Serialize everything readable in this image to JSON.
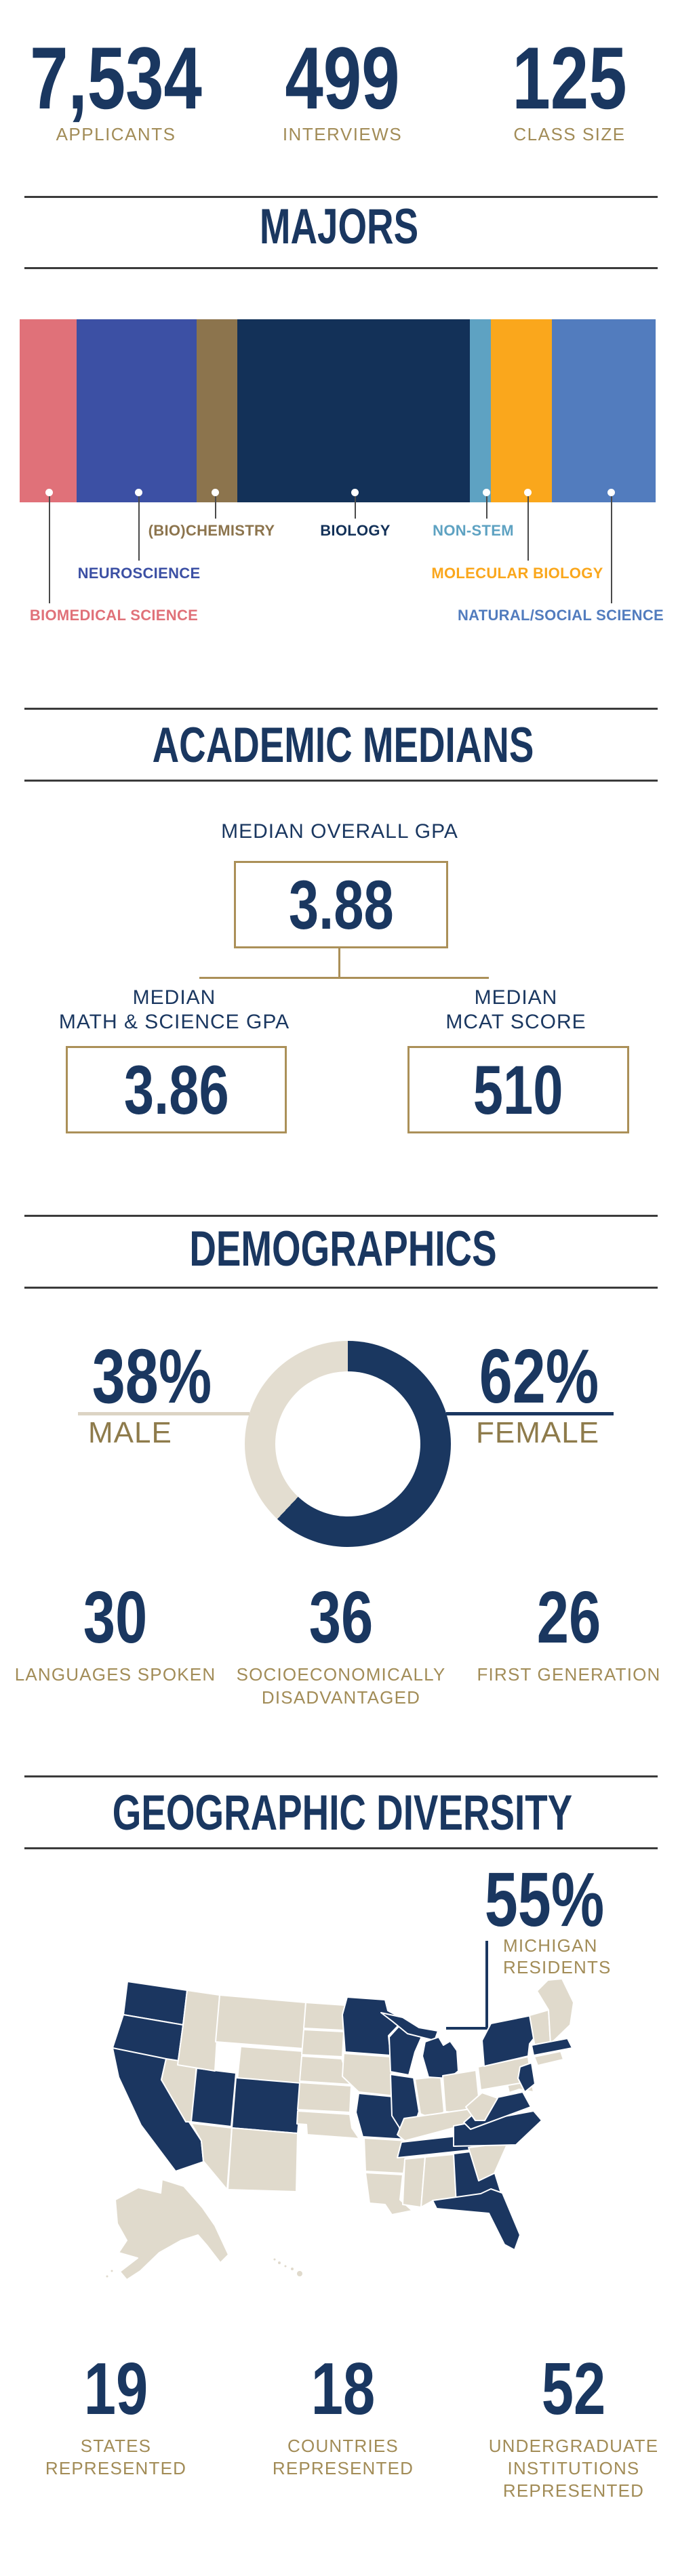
{
  "colors": {
    "navy": "#1A3760",
    "gold": "#A28C57",
    "male_female_gold": "#8E7B4B",
    "rule_gray": "#3B3B3B",
    "box_border_tan": "#AB9058",
    "beige": "#E3DDD0",
    "underline_beige": "#DCD4C4",
    "map_beige": "#E0DACC",
    "map_navy": "#1B3660",
    "white": "#FFFFFF"
  },
  "top_stats": [
    {
      "value": "7,534",
      "label": "APPLICANTS"
    },
    {
      "value": "499",
      "label": "INTERVIEWS"
    },
    {
      "value": "125",
      "label": "CLASS SIZE"
    }
  ],
  "majors": {
    "title": "MAJORS",
    "segments": [
      {
        "label": "BIOMEDICAL SCIENCE",
        "percent": 9.0,
        "color": "#E07179"
      },
      {
        "label": "NEUROSCIENCE",
        "percent": 18.8,
        "color": "#3C50A4"
      },
      {
        "label": "(BIO)CHEMISTRY",
        "percent": 6.4,
        "color": "#8C744D"
      },
      {
        "label": "BIOLOGY",
        "percent": 36.6,
        "color": "#133158"
      },
      {
        "label": "NON-STEM",
        "percent": 3.3,
        "color": "#5EA2C2"
      },
      {
        "label": "MOLECULAR BIOLOGY",
        "percent": 9.6,
        "color": "#FAA71C"
      },
      {
        "label": "NATURAL/SOCIAL SCIENCE",
        "percent": 16.3,
        "color": "#527CBE"
      }
    ]
  },
  "academic": {
    "title": "ACADEMIC MEDIANS",
    "overall_label": "MEDIAN OVERALL GPA",
    "overall_value": "3.88",
    "math_label_1": "MEDIAN",
    "math_label_2": "MATH & SCIENCE GPA",
    "math_value": "3.86",
    "mcat_label_1": "MEDIAN",
    "mcat_label_2": "MCAT SCORE",
    "mcat_value": "510"
  },
  "demographics": {
    "title": "DEMOGRAPHICS",
    "male_pct": "38%",
    "male_label": "MALE",
    "female_pct": "62%",
    "female_label": "FEMALE",
    "donut": {
      "female_percent": 62,
      "male_percent": 38
    },
    "stats": [
      {
        "value": "30",
        "lines": [
          "LANGUAGES SPOKEN"
        ]
      },
      {
        "value": "36",
        "lines": [
          "SOCIOECONOMICALLY",
          "DISADVANTAGED"
        ]
      },
      {
        "value": "26",
        "lines": [
          "FIRST GENERATION"
        ]
      }
    ]
  },
  "geographic": {
    "title": "GEOGRAPHIC DIVERSITY",
    "michigan_pct": "55%",
    "michigan_label_1": "MICHIGAN",
    "michigan_label_2": "RESIDENTS",
    "map": {
      "represented_states": [
        "WA",
        "OR",
        "CA",
        "UT",
        "CO",
        "MN",
        "WI",
        "MI",
        "IL",
        "MO",
        "TX",
        "TN",
        "NC",
        "VA",
        "GA",
        "FL",
        "NY",
        "MA",
        "NJ"
      ],
      "not_represented_examples": [
        "ID",
        "MT",
        "WY",
        "NV",
        "AZ",
        "NM",
        "ND",
        "SD",
        "NE",
        "KS",
        "OK",
        "IA",
        "AR",
        "LA",
        "MS",
        "AL",
        "SC",
        "KY",
        "IN",
        "OH",
        "WV",
        "PA",
        "MD",
        "VT",
        "NH",
        "ME",
        "CT",
        "RI",
        "AK",
        "HI"
      ]
    },
    "stats": [
      {
        "value": "19",
        "lines": [
          "STATES",
          "REPRESENTED"
        ]
      },
      {
        "value": "18",
        "lines": [
          "COUNTRIES",
          "REPRESENTED"
        ]
      },
      {
        "value": "52",
        "lines": [
          "UNDERGRADUATE",
          "INSTITUTIONS",
          "REPRESENTED"
        ]
      }
    ]
  },
  "chart_data": [
    {
      "type": "bar",
      "subtype": "stacked-horizontal-100pct",
      "title": "MAJORS",
      "categories": [
        "BIOMEDICAL SCIENCE",
        "NEUROSCIENCE",
        "(BIO)CHEMISTRY",
        "BIOLOGY",
        "NON-STEM",
        "MOLECULAR BIOLOGY",
        "NATURAL/SOCIAL SCIENCE"
      ],
      "values": [
        9.0,
        18.8,
        6.4,
        36.6,
        3.3,
        9.6,
        16.3
      ],
      "unit": "percent of class (estimated from segment widths)",
      "colors": [
        "#E07179",
        "#3C50A4",
        "#8C744D",
        "#133158",
        "#5EA2C2",
        "#FAA71C",
        "#527CBE"
      ],
      "legend_position": "callouts-below"
    },
    {
      "type": "pie",
      "subtype": "donut",
      "title": "DEMOGRAPHICS - GENDER",
      "categories": [
        "FEMALE",
        "MALE"
      ],
      "values": [
        62,
        38
      ],
      "colors": [
        "#1A3760",
        "#E3DDD0"
      ],
      "start_angle_deg": 0,
      "direction": "clockwise"
    },
    {
      "type": "heatmap",
      "subtype": "us-choropleth",
      "title": "GEOGRAPHIC DIVERSITY",
      "categories": [
        "represented",
        "not represented"
      ],
      "represented_states": [
        "WA",
        "OR",
        "CA",
        "UT",
        "CO",
        "MN",
        "WI",
        "MI",
        "IL",
        "MO",
        "TX",
        "TN",
        "NC",
        "VA",
        "GA",
        "FL",
        "NY",
        "MA",
        "NJ"
      ],
      "colors": {
        "represented": "#1B3660",
        "not_represented": "#E0DACC"
      },
      "annotation": "55% MICHIGAN RESIDENTS"
    }
  ]
}
